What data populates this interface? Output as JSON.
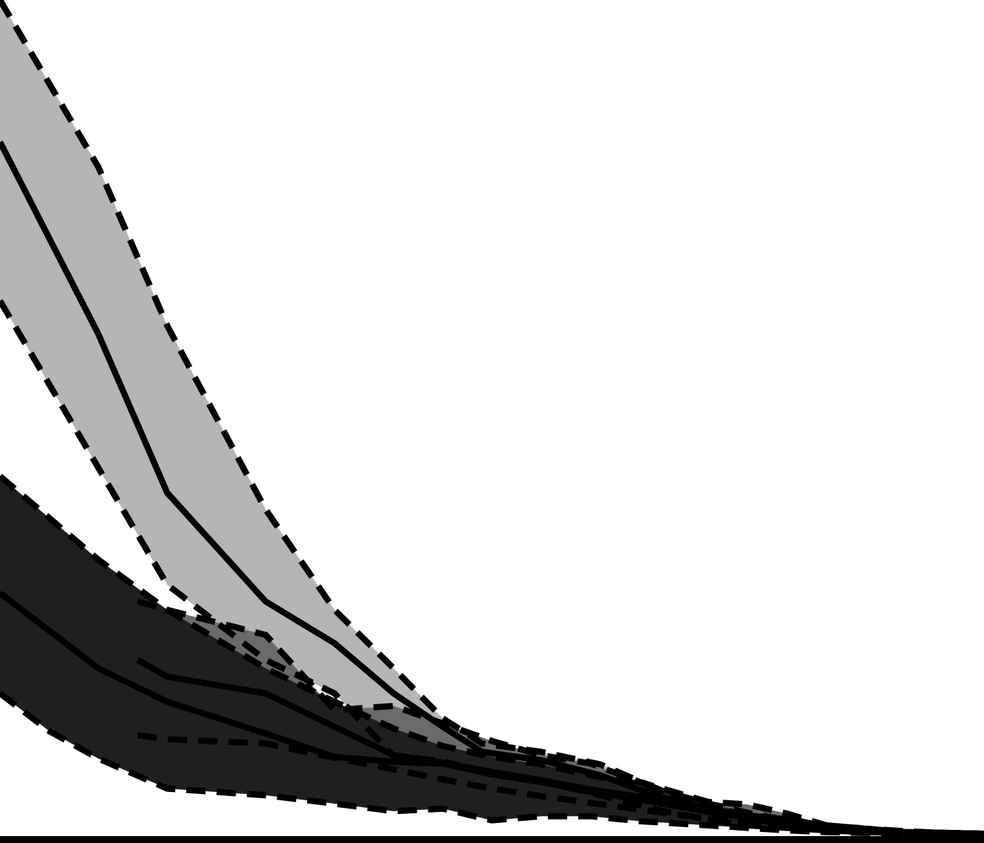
{
  "chart_data": {
    "type": "area",
    "title": "",
    "xlabel": "",
    "ylabel": "",
    "xlim": [
      0,
      100
    ],
    "ylim": [
      0,
      100
    ],
    "grid": false,
    "legend": "none",
    "series": [
      {
        "fill": "#b5b5b5",
        "x": [
          0,
          10,
          17,
          27,
          34,
          40,
          45,
          49,
          55,
          61,
          67,
          72,
          76,
          80,
          84,
          88,
          92,
          96,
          100
        ],
        "upper": [
          100,
          80,
          61,
          39,
          27,
          20,
          14,
          11,
          10,
          8.5,
          5.5,
          3.6,
          2.3,
          1.4,
          0.9,
          0.6,
          0.4,
          0.3,
          0.2
        ],
        "mean": [
          83,
          60,
          41,
          28,
          23,
          17,
          13,
          10,
          9,
          7.2,
          4.6,
          3.2,
          2.1,
          1.2,
          0.8,
          0.5,
          0.3,
          0.2,
          0.1
        ],
        "lower": [
          64,
          44,
          30,
          21,
          17,
          9.5,
          8.9,
          7.6,
          6.5,
          4.8,
          3.0,
          1.9,
          1.2,
          0.9,
          0.6,
          0.4,
          0.3,
          0.2,
          0.1
        ]
      },
      {
        "fill": "#6b6b6b",
        "x": [
          14,
          17,
          27,
          34,
          40,
          45,
          50,
          55,
          60,
          65,
          72,
          76,
          80,
          84,
          88,
          92,
          96,
          100
        ],
        "upper": [
          28,
          27,
          24,
          15,
          15.5,
          13.4,
          11.3,
          9.6,
          8.6,
          6.4,
          4.0,
          3.7,
          2.6,
          1.2,
          0.8,
          0.4,
          0.3,
          0.2
        ],
        "mean": [
          21,
          19,
          17,
          13,
          9.6,
          8.7,
          7.6,
          6.6,
          5.5,
          4.6,
          3.1,
          2.4,
          1.9,
          1.1,
          0.7,
          0.4,
          0.3,
          0.2
        ],
        "lower": [
          12,
          11.5,
          11,
          9.3,
          7.9,
          6.7,
          5.6,
          4.7,
          3.9,
          3.1,
          2.0,
          1.5,
          1.2,
          0.8,
          0.5,
          0.3,
          0.2,
          0.1
        ]
      },
      {
        "fill": "#1f1f1f",
        "x": [
          0,
          5,
          10,
          17,
          27,
          34,
          40,
          45,
          50,
          55,
          60,
          65,
          72,
          76,
          80,
          84,
          88,
          92,
          96,
          100
        ],
        "upper": [
          43,
          38,
          33,
          27,
          20,
          16,
          12.8,
          10.7,
          9.4,
          8.5,
          7.2,
          6.1,
          3.8,
          2.7,
          1.8,
          1.2,
          0.8,
          0.5,
          0.3,
          0.2
        ],
        "mean": [
          29,
          24.5,
          20,
          16,
          12.2,
          9.4,
          8.8,
          8.6,
          7.3,
          6.4,
          5.2,
          4.3,
          2.8,
          2.1,
          1.5,
          1.0,
          0.7,
          0.4,
          0.3,
          0.2
        ],
        "lower": [
          17,
          12.5,
          9.2,
          5.6,
          4.8,
          3.8,
          2.9,
          3.2,
          1.8,
          2.3,
          2.3,
          1.7,
          1.2,
          0.9,
          0.6,
          0.4,
          0.3,
          0.2,
          0.1,
          0.1
        ]
      }
    ]
  }
}
